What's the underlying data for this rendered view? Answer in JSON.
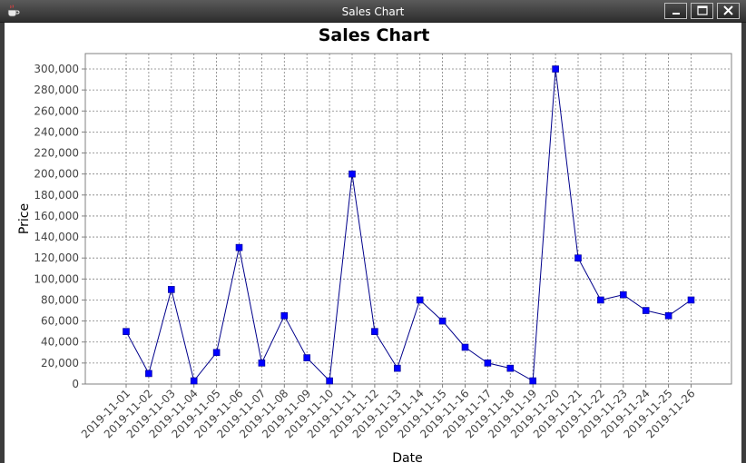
{
  "window": {
    "title": "Sales Chart",
    "icons": [
      "coffee-cup-icon",
      "minimize-icon",
      "maximize-icon",
      "close-icon"
    ]
  },
  "colors": {
    "series": "#00008b",
    "marker": "#0000ff",
    "grid": "#808080",
    "background": "#ffffff"
  },
  "chart_data": {
    "type": "line",
    "title": "Sales Chart",
    "xlabel": "Date",
    "ylabel": "Price",
    "ylim": [
      0,
      300000
    ],
    "ytick_step": 20000,
    "grid": true,
    "markers": "square",
    "x": [
      "2019-11-01",
      "2019-11-02",
      "2019-11-03",
      "2019-11-04",
      "2019-11-05",
      "2019-11-06",
      "2019-11-07",
      "2019-11-08",
      "2019-11-09",
      "2019-11-10",
      "2019-11-11",
      "2019-11-12",
      "2019-11-13",
      "2019-11-14",
      "2019-11-15",
      "2019-11-16",
      "2019-11-17",
      "2019-11-18",
      "2019-11-19",
      "2019-11-20",
      "2019-11-21",
      "2019-11-22",
      "2019-11-23",
      "2019-11-24",
      "2019-11-25",
      "2019-11-26"
    ],
    "series": [
      {
        "values": [
          50000,
          10000,
          90000,
          3000,
          30000,
          130000,
          20000,
          65000,
          25000,
          3000,
          200000,
          50000,
          15000,
          80000,
          60000,
          35000,
          20000,
          15000,
          3000,
          300000,
          120000,
          80000,
          85000,
          70000,
          65000,
          80000
        ]
      }
    ]
  }
}
